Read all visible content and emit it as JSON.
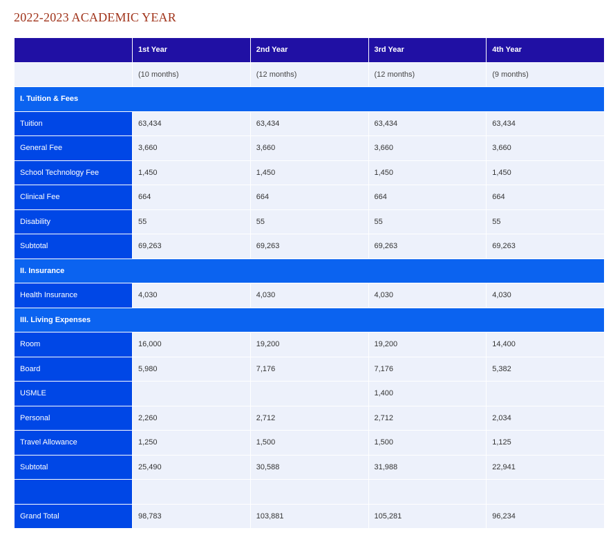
{
  "page_title": "2022-2023 ACADEMIC YEAR",
  "table": {
    "year_headers": [
      "1st Year",
      "2nd Year",
      "3rd Year",
      "4th Year"
    ],
    "months": [
      "(10 months)",
      "(12 months)",
      "(12 months)",
      "(9 months)"
    ],
    "sections": [
      {
        "title": "I. Tuition & Fees",
        "rows": [
          {
            "label": "Tuition",
            "values": [
              "63,434",
              "63,434",
              "63,434",
              "63,434"
            ]
          },
          {
            "label": "General Fee",
            "values": [
              "3,660",
              "3,660",
              "3,660",
              "3,660"
            ]
          },
          {
            "label": "School Technology Fee",
            "values": [
              "1,450",
              "1,450",
              "1,450",
              "1,450"
            ]
          },
          {
            "label": "Clinical Fee",
            "values": [
              "664",
              "664",
              "664",
              "664"
            ]
          },
          {
            "label": "Disability",
            "values": [
              "55",
              "55",
              "55",
              "55"
            ]
          },
          {
            "label": "Subtotal",
            "values": [
              "69,263",
              "69,263",
              "69,263",
              "69,263"
            ]
          }
        ]
      },
      {
        "title": "II. Insurance",
        "rows": [
          {
            "label": "Health Insurance",
            "values": [
              "4,030",
              "4,030",
              "4,030",
              "4,030"
            ]
          }
        ]
      },
      {
        "title": "III. Living Expenses",
        "rows": [
          {
            "label": "Room",
            "values": [
              "16,000",
              "19,200",
              "19,200",
              "14,400"
            ]
          },
          {
            "label": "Board",
            "values": [
              "5,980",
              "7,176",
              "7,176",
              "5,382"
            ]
          },
          {
            "label": "USMLE",
            "values": [
              "",
              "",
              "1,400",
              ""
            ]
          },
          {
            "label": "Personal",
            "values": [
              "2,260",
              "2,712",
              "2,712",
              "2,034"
            ]
          },
          {
            "label": "Travel Allowance",
            "values": [
              "1,250",
              "1,500",
              "1,500",
              "1,125"
            ]
          },
          {
            "label": "Subtotal",
            "values": [
              "25,490",
              "30,588",
              "31,988",
              "22,941"
            ]
          },
          {
            "label": "",
            "values": [
              "",
              "",
              "",
              ""
            ]
          },
          {
            "label": "Grand Total",
            "values": [
              "98,783",
              "103,881",
              "105,281",
              "96,234"
            ]
          }
        ]
      }
    ]
  },
  "colors": {
    "title": "#a0331a",
    "header_bg": "#2010a4",
    "section_bg": "#0b63f0",
    "label_bg": "#0047e6",
    "cell_bg": "#edf1fb"
  }
}
